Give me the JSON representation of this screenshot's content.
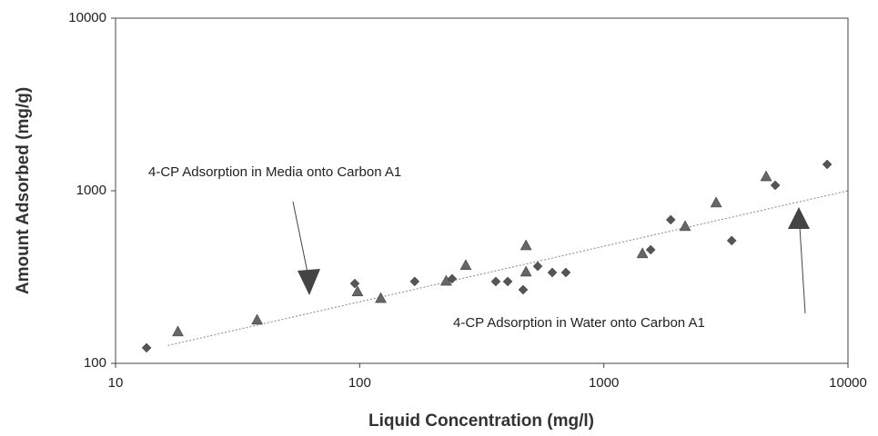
{
  "chart_data": {
    "type": "scatter",
    "xlabel": "Liquid Concentration (mg/l)",
    "ylabel": "Amount Adsorbed (mg/g)",
    "xscale": "log",
    "yscale": "log",
    "xlim": [
      10,
      10000
    ],
    "ylim": [
      100,
      10000
    ],
    "xticks": [
      10,
      100,
      1000,
      10000
    ],
    "yticks": [
      100,
      1000,
      10000
    ],
    "annotations": [
      "4-CP Adsorption in Media onto Carbon A1",
      "4-CP Adsorption in Water onto Carbon A1"
    ],
    "series": [
      {
        "marker": "diamond",
        "color": "#555555",
        "x": [
          13.4,
          95.5,
          168,
          239,
          361,
          404,
          467,
          536,
          615,
          699,
          1556,
          1880,
          3340,
          5040,
          8220
        ],
        "values": [
          123,
          290,
          298,
          309,
          298,
          298,
          267,
          365,
          336,
          336,
          455,
          679,
          514,
          1076,
          1422
        ]
      },
      {
        "marker": "triangle",
        "color": "#666666",
        "x": [
          18,
          38,
          98,
          122,
          226,
          272,
          480,
          480,
          1439,
          2153,
          2884,
          4620
        ],
        "values": [
          153,
          179,
          261,
          239,
          301,
          371,
          483,
          340,
          434,
          624,
          855,
          1213
        ]
      }
    ],
    "trendline": {
      "color": "#999999",
      "x": [
        16.4,
        10000
      ],
      "values": [
        127,
        1000
      ]
    }
  }
}
